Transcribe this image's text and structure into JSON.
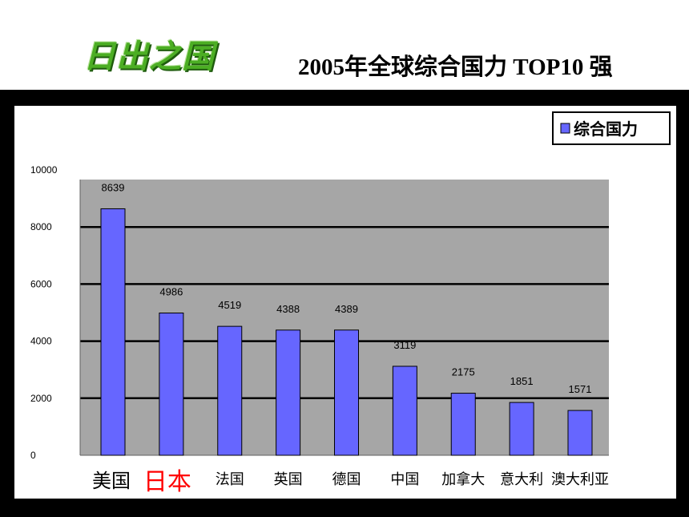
{
  "header": {
    "logo_text": "日出之国",
    "title": "2005年全球综合国力 TOP10 强"
  },
  "chart_data": {
    "type": "bar",
    "categories": [
      "美国",
      "日本",
      "法国",
      "英国",
      "德国",
      "中国",
      "加拿大",
      "意大利",
      "澳大利亚"
    ],
    "series": [
      {
        "name": "综合国力",
        "values": [
          8639,
          4986,
          4519,
          4388,
          4389,
          3119,
          2175,
          1851,
          1571
        ],
        "value_labels": [
          "8639",
          "4986",
          "4519",
          "4388",
          "4389",
          "3119",
          "2175",
          "1851",
          "1571"
        ]
      }
    ],
    "yticks": [
      "10000",
      "8000",
      "6000",
      "4000",
      "2000",
      "0"
    ],
    "ylim": [
      0,
      10000
    ],
    "grid": true,
    "legend": "top-right",
    "highlight_category": "日本",
    "colors": {
      "bar": "#6666ff",
      "plot_bg": "#a6a6a6",
      "gridline": "#000000",
      "highlight_label": "#ff0000",
      "logo": "#4cae24"
    }
  }
}
